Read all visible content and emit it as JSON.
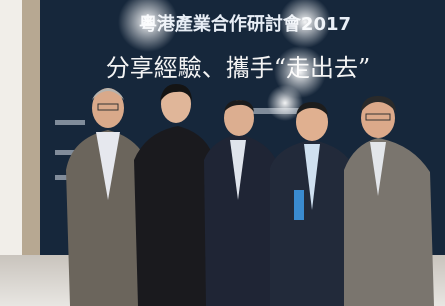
{
  "banner": {
    "title": "粵港產業合作研討會2017",
    "slogan": "分享經驗、攜手“走出去”"
  }
}
